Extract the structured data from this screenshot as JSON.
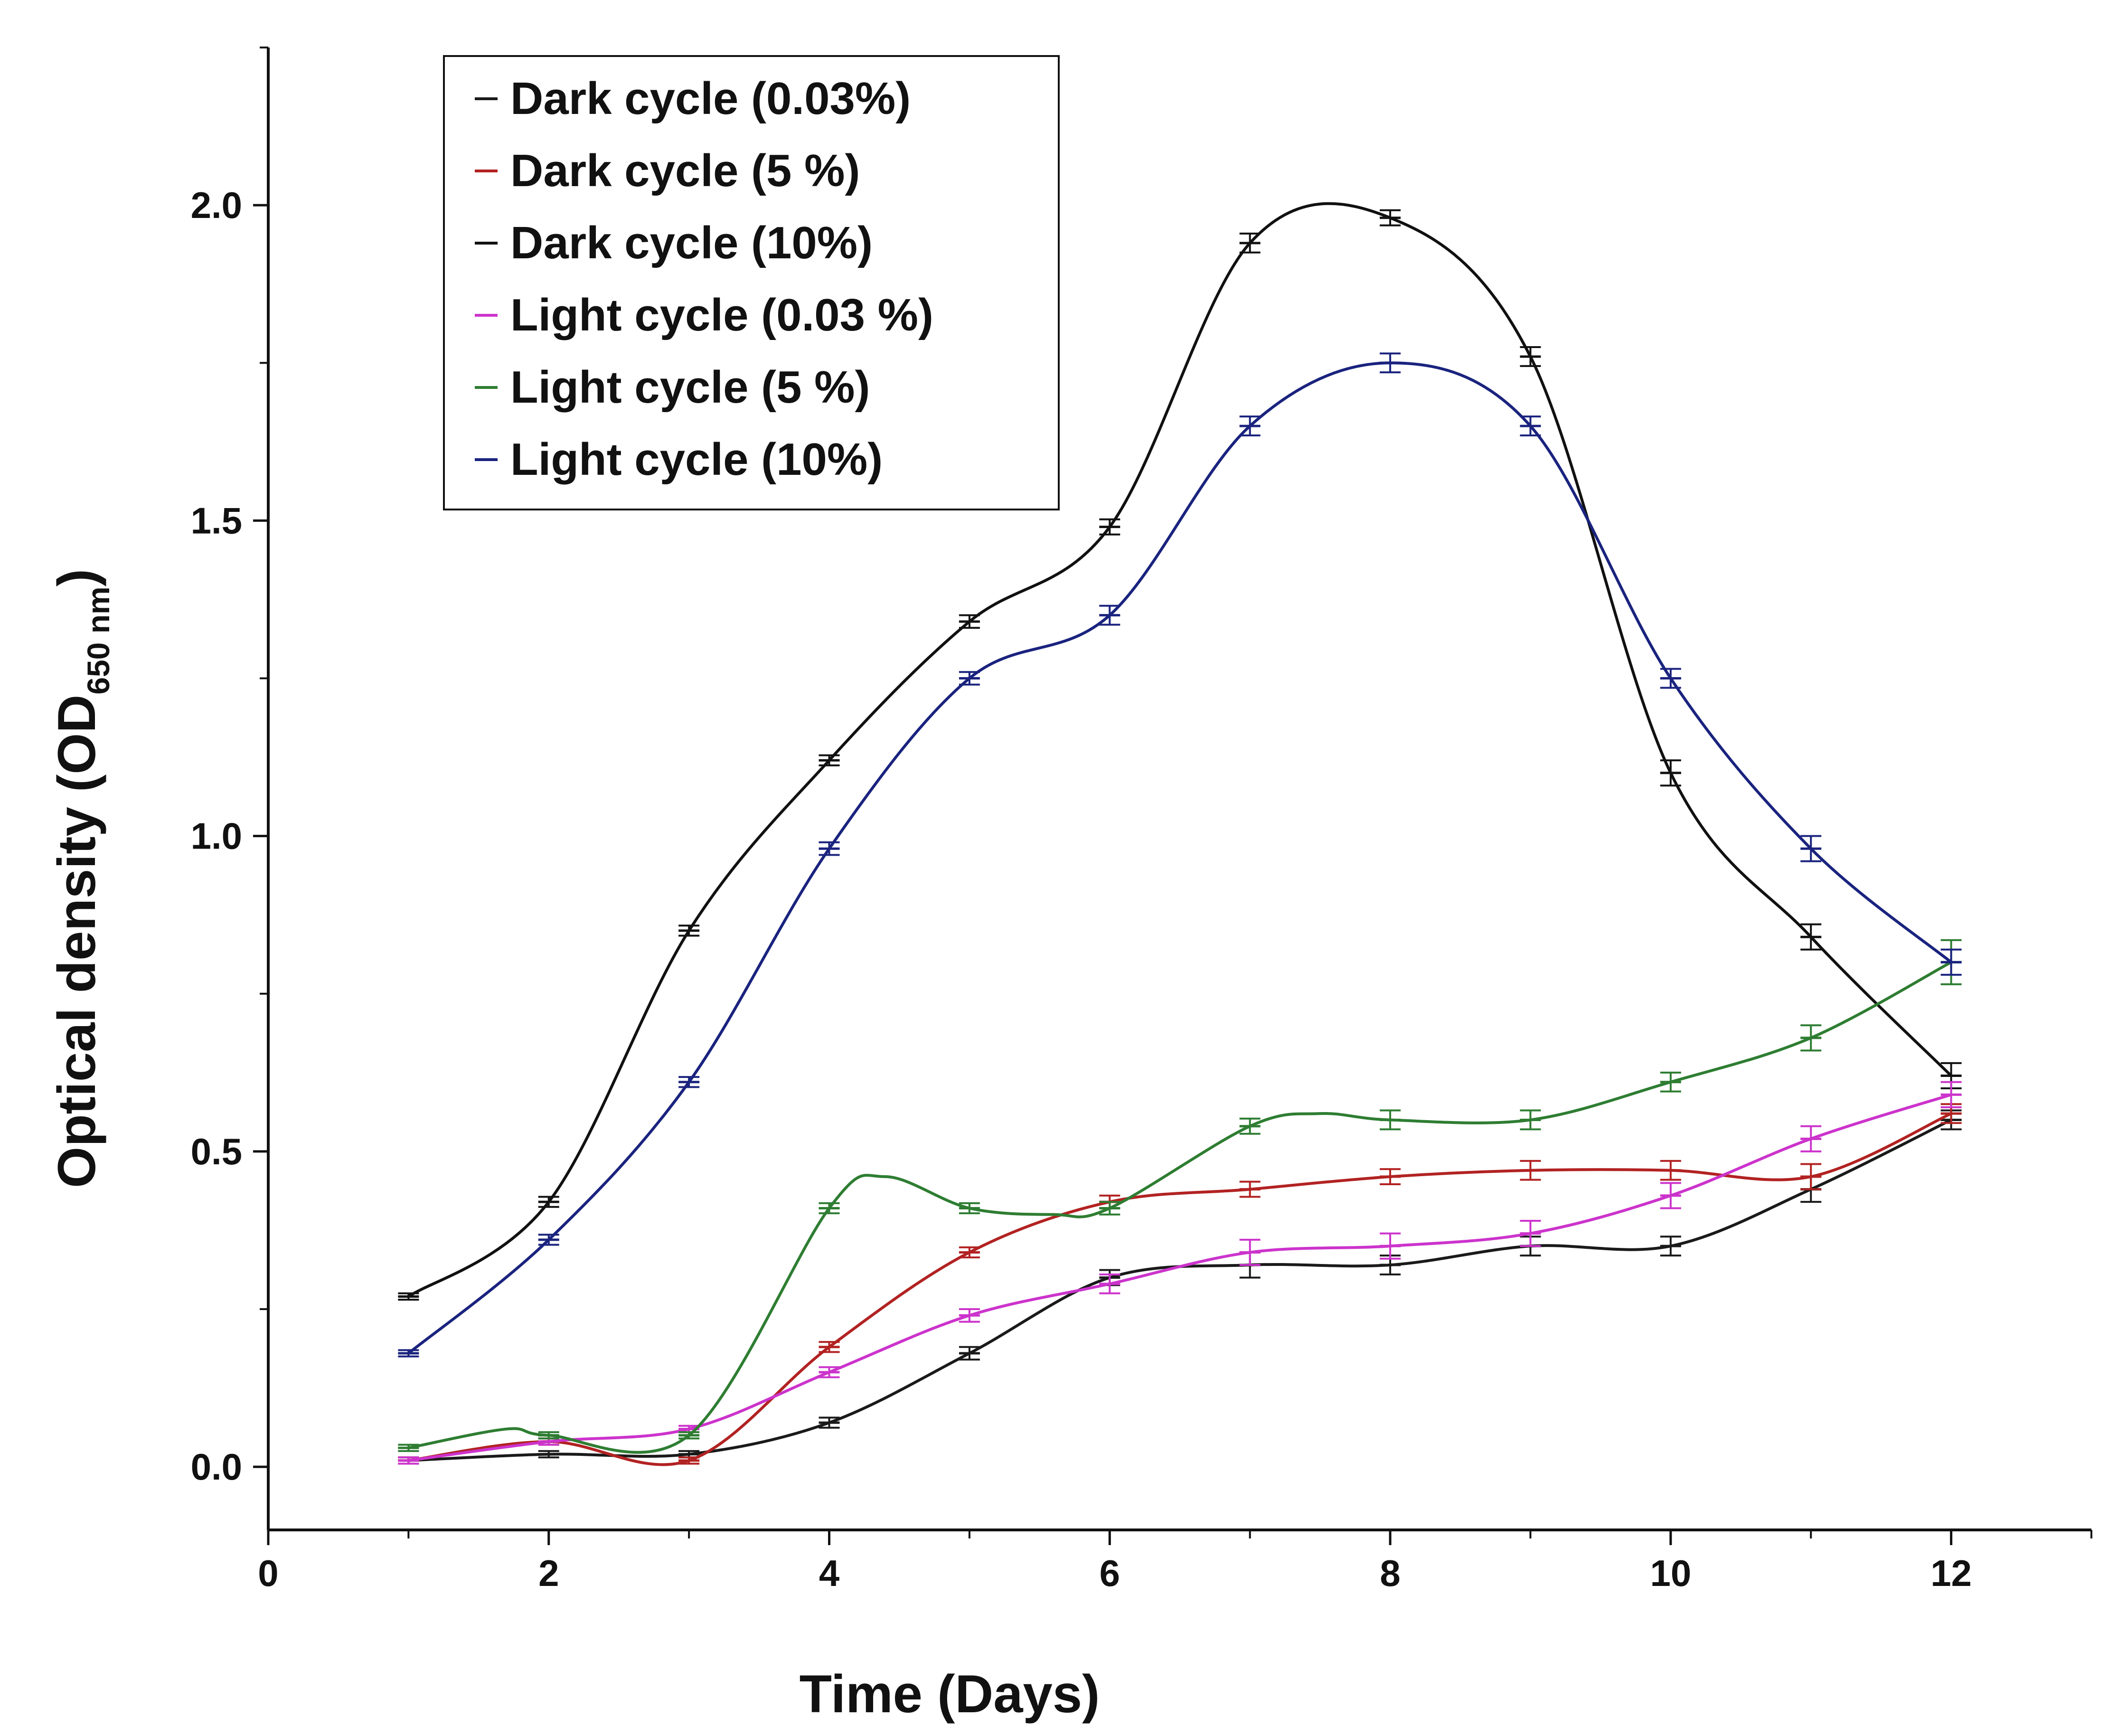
{
  "chart_data": {
    "type": "line",
    "title": "",
    "xlabel": "Time (Days)",
    "ylabel": {
      "main": "Optical density (OD",
      "subscript": "650 nm",
      "close": ")"
    },
    "xlim": [
      0,
      13
    ],
    "ylim": [
      -0.1,
      2.25
    ],
    "xticks": [
      0,
      2,
      4,
      6,
      8,
      10,
      12
    ],
    "xtick_labels": [
      "0",
      "2",
      "4",
      "6",
      "8",
      "10",
      "12"
    ],
    "yticks": [
      0.0,
      0.5,
      1.0,
      1.5,
      2.0
    ],
    "ytick_labels": [
      "0.0",
      "0.5",
      "1.0",
      "1.5",
      "2.0"
    ],
    "legend_position": "top-left",
    "grid": false,
    "series": [
      {
        "name": "Dark cycle (0.03%)",
        "color": "#1a1a1a",
        "x": [
          1,
          2,
          3,
          4,
          5,
          6,
          7,
          8,
          9,
          10,
          11,
          12
        ],
        "y": [
          0.01,
          0.02,
          0.02,
          0.07,
          0.18,
          0.3,
          0.32,
          0.32,
          0.35,
          0.35,
          0.44,
          0.55
        ],
        "err": [
          0.005,
          0.005,
          0.005,
          0.008,
          0.01,
          0.012,
          0.02,
          0.015,
          0.015,
          0.015,
          0.02,
          0.015
        ]
      },
      {
        "name": "Dark cycle (5 %)",
        "color": "#b22222",
        "x": [
          1,
          2,
          3,
          4,
          5,
          6,
          7,
          8,
          9,
          10,
          11,
          12
        ],
        "y": [
          0.01,
          0.04,
          0.01,
          0.19,
          0.34,
          0.42,
          0.44,
          0.46,
          0.47,
          0.47,
          0.46,
          0.56
        ],
        "err": [
          0.005,
          0.005,
          0.005,
          0.008,
          0.008,
          0.01,
          0.012,
          0.012,
          0.015,
          0.015,
          0.02,
          0.015
        ]
      },
      {
        "name": "Dark cycle (10%)",
        "color": "#111111",
        "x": [
          1,
          2,
          3,
          4,
          5,
          6,
          7,
          8,
          9,
          10,
          11,
          12
        ],
        "y": [
          0.27,
          0.42,
          0.85,
          1.12,
          1.34,
          1.49,
          1.94,
          1.98,
          1.76,
          1.1,
          0.84,
          0.62
        ],
        "err": [
          0.005,
          0.008,
          0.008,
          0.008,
          0.01,
          0.012,
          0.015,
          0.012,
          0.015,
          0.02,
          0.02,
          0.02
        ]
      },
      {
        "name": "Light cycle (0.03 %)",
        "color": "#cc33cc",
        "x": [
          1,
          2,
          3,
          4,
          5,
          6,
          7,
          8,
          9,
          10,
          11,
          12
        ],
        "y": [
          0.01,
          0.04,
          0.06,
          0.15,
          0.24,
          0.29,
          0.34,
          0.35,
          0.37,
          0.43,
          0.52,
          0.59
        ],
        "err": [
          0.005,
          0.005,
          0.005,
          0.008,
          0.01,
          0.015,
          0.02,
          0.02,
          0.02,
          0.02,
          0.02,
          0.02
        ]
      },
      {
        "name": "Light cycle (5 %)",
        "color": "#2e7d32",
        "x": [
          1,
          1.7,
          2,
          3,
          4,
          4.4,
          5,
          5.6,
          6,
          7,
          7.5,
          8,
          9,
          10,
          11,
          12
        ],
        "y": [
          0.03,
          0.06,
          0.05,
          0.05,
          0.41,
          0.46,
          0.41,
          0.4,
          0.41,
          0.54,
          0.56,
          0.55,
          0.55,
          0.61,
          0.68,
          0.8
        ],
        "err": [
          0.005,
          0,
          0.005,
          0.005,
          0.008,
          0,
          0.008,
          0,
          0.01,
          0.012,
          0,
          0.015,
          0.015,
          0.015,
          0.02,
          0.035
        ]
      },
      {
        "name": "Light cycle (10%)",
        "color": "#1a237e",
        "x": [
          1,
          2,
          3,
          4,
          5,
          6,
          7,
          8,
          9,
          10,
          11,
          12
        ],
        "y": [
          0.18,
          0.36,
          0.61,
          0.98,
          1.25,
          1.35,
          1.65,
          1.75,
          1.65,
          1.25,
          0.98,
          0.8
        ],
        "err": [
          0.005,
          0.008,
          0.008,
          0.01,
          0.01,
          0.015,
          0.015,
          0.015,
          0.015,
          0.015,
          0.02,
          0.02
        ]
      }
    ]
  }
}
